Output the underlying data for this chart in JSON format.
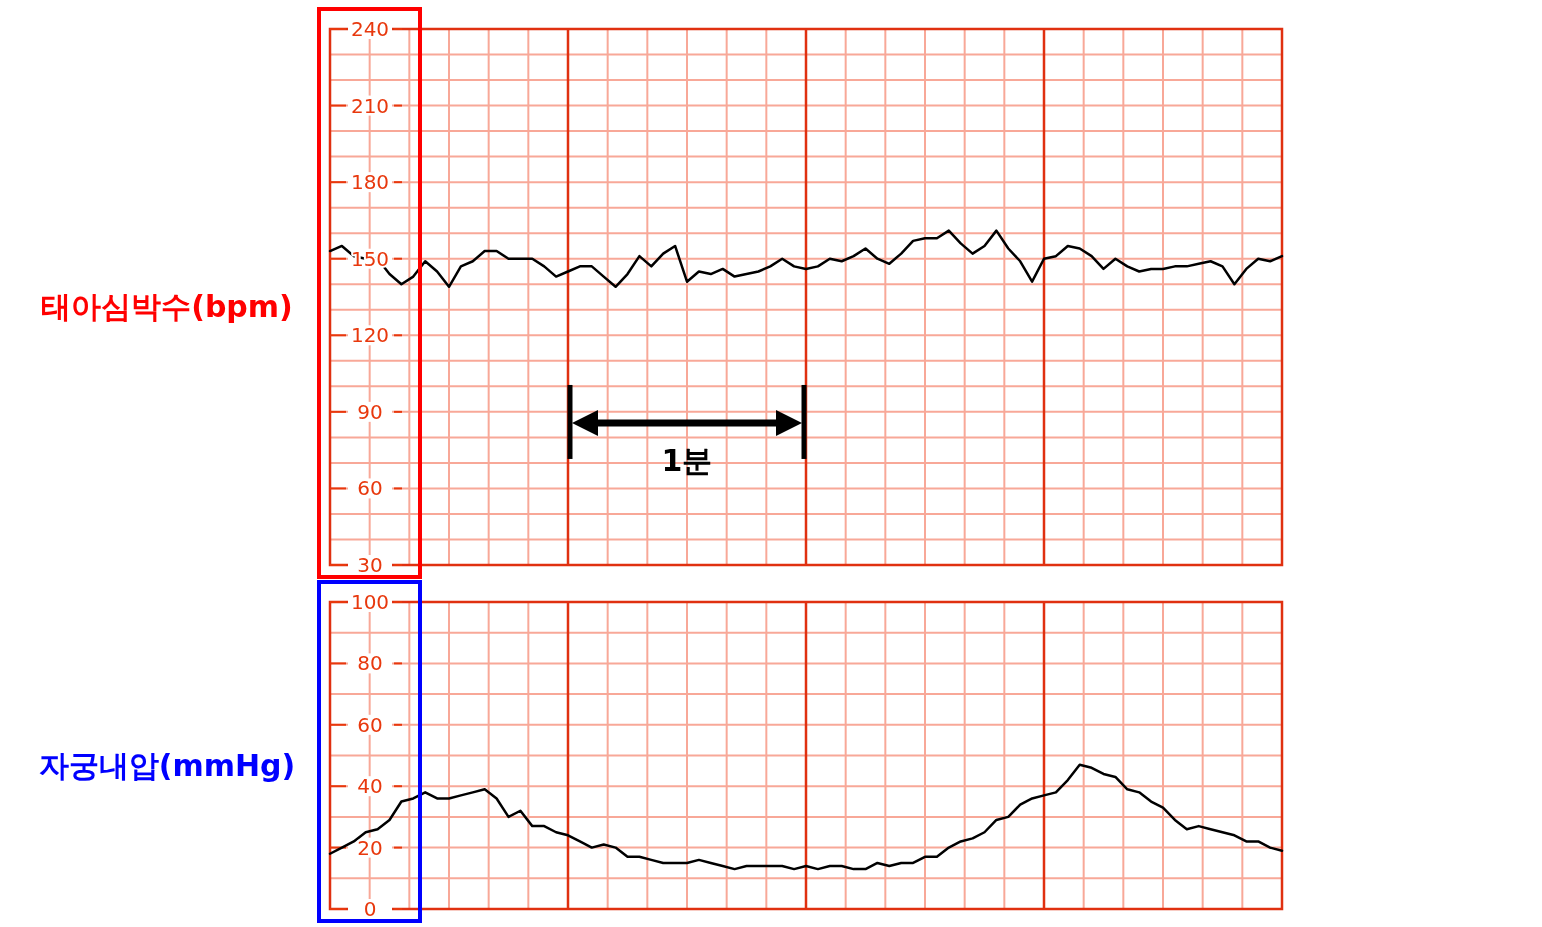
{
  "chart_data": [
    {
      "type": "line",
      "ylabel": "태아심박수(bpm)",
      "ylim": [
        30,
        240
      ],
      "grid": true,
      "tick_labels": "y",
      "categories": [
        null,
        null,
        null,
        null,
        null,
        null,
        null,
        null,
        null,
        null,
        null,
        null,
        null,
        null,
        null,
        null,
        null,
        null,
        null,
        null,
        null,
        null,
        null,
        null,
        null,
        null,
        null,
        null,
        null,
        null,
        null,
        null,
        null,
        null,
        null,
        null,
        null,
        null,
        null,
        null,
        null,
        null,
        null,
        null,
        null,
        null,
        null,
        null,
        null,
        null,
        null,
        null,
        null,
        null,
        null,
        null,
        null,
        null,
        null,
        null,
        null,
        null,
        null,
        null,
        null,
        null,
        null,
        null,
        null,
        null,
        null,
        null,
        null,
        null,
        null,
        null,
        null,
        null,
        null,
        null,
        null
      ],
      "yticks": [
        30,
        {
          "value": 40,
          "label": null
        },
        {
          "value": 50,
          "label": null
        },
        60,
        {
          "value": 70,
          "label": null
        },
        {
          "value": 80,
          "label": null
        },
        90,
        {
          "value": 100,
          "label": null
        },
        {
          "value": 110,
          "label": null
        },
        120,
        {
          "value": 130,
          "label": null
        },
        {
          "value": 140,
          "label": null
        },
        150,
        {
          "value": 160,
          "label": null
        },
        {
          "value": 170,
          "label": null
        },
        180,
        {
          "value": 190,
          "label": null
        },
        {
          "value": 200,
          "label": null
        },
        210,
        {
          "value": 220,
          "label": null
        },
        {
          "value": 230,
          "label": null
        },
        240
      ],
      "annotations": [
        "1분"
      ],
      "series": [
        {
          "color": "#000000",
          "values": [
            153,
            155,
            151,
            150,
            150,
            144,
            140,
            143,
            149,
            145,
            139,
            147,
            149,
            153,
            153,
            150,
            150,
            150,
            147,
            143,
            145,
            147,
            147,
            143,
            139,
            144,
            151,
            147,
            152,
            155,
            141,
            145,
            144,
            146,
            143,
            144,
            145,
            147,
            150,
            147,
            146,
            147,
            150,
            149,
            151,
            154,
            150,
            148,
            152,
            157,
            158,
            158,
            161,
            156,
            152,
            155,
            161,
            154,
            149,
            141,
            150,
            151,
            155,
            154,
            151,
            146,
            150,
            147,
            145,
            146,
            146,
            147,
            147,
            148,
            149,
            147,
            140,
            146,
            150,
            149,
            151
          ]
        }
      ]
    },
    {
      "type": "line",
      "ylabel": "자궁내압(mmHg)",
      "ylim": [
        0,
        100
      ],
      "grid": true,
      "tick_labels": "y",
      "categories": [
        null,
        null,
        null,
        null,
        null,
        null,
        null,
        null,
        null,
        null,
        null,
        null,
        null,
        null,
        null,
        null,
        null,
        null,
        null,
        null,
        null,
        null,
        null,
        null,
        null,
        null,
        null,
        null,
        null,
        null,
        null,
        null,
        null,
        null,
        null,
        null,
        null,
        null,
        null,
        null,
        null,
        null,
        null,
        null,
        null,
        null,
        null,
        null,
        null,
        null,
        null,
        null,
        null,
        null,
        null,
        null,
        null,
        null,
        null,
        null,
        null,
        null,
        null,
        null,
        null,
        null,
        null,
        null,
        null,
        null,
        null,
        null,
        null,
        null,
        null,
        null,
        null,
        null,
        null,
        null,
        null
      ],
      "yticks": [
        0,
        {
          "value": 10,
          "label": null
        },
        20,
        {
          "value": 30,
          "label": null
        },
        40,
        {
          "value": 50,
          "label": null
        },
        60,
        {
          "value": 70,
          "label": null
        },
        80,
        {
          "value": 90,
          "label": null
        },
        100
      ],
      "series": [
        {
          "color": "#000000",
          "values": [
            18,
            20,
            22,
            25,
            26,
            29,
            35,
            36,
            38,
            36,
            36,
            37,
            38,
            39,
            36,
            30,
            32,
            27,
            27,
            25,
            24,
            22,
            20,
            21,
            20,
            17,
            17,
            16,
            15,
            15,
            15,
            16,
            15,
            14,
            13,
            14,
            14,
            14,
            14,
            13,
            14,
            13,
            14,
            14,
            13,
            13,
            15,
            14,
            15,
            15,
            17,
            17,
            20,
            22,
            23,
            25,
            29,
            30,
            34,
            36,
            37,
            38,
            42,
            47,
            46,
            44,
            43,
            39,
            38,
            35,
            33,
            29,
            26,
            27,
            26,
            25,
            24,
            22,
            22,
            20,
            19
          ]
        }
      ]
    }
  ]
}
